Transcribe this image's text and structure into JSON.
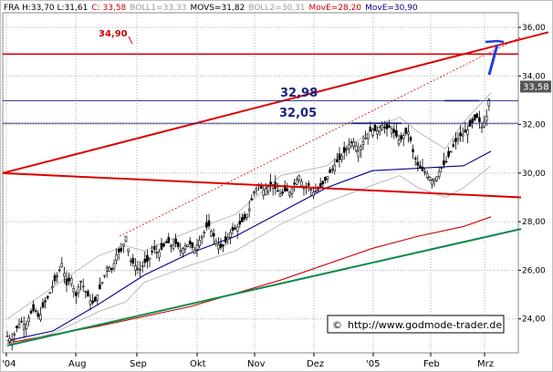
{
  "header": [
    {
      "text": "FRA H:33,70 L:31,61",
      "color": "#000000"
    },
    {
      "text": "C: 33,58",
      "color": "#cc0000"
    },
    {
      "text": "BOLL1=33,33",
      "color": "#999999"
    },
    {
      "text": "MOVS=31,82",
      "color": "#000000"
    },
    {
      "text": "BOLL2=30,31",
      "color": "#999999"
    },
    {
      "text": "MovE=28,20",
      "color": "#cc0000"
    },
    {
      "text": "MovE=30,90",
      "color": "#00008b"
    }
  ],
  "last_price_label": "33,58",
  "copyright": "http://www.godmode-trader.de",
  "copyright_symbol": "©",
  "annotations": {
    "top_red_level": "34,90",
    "resistance_1": "32,98",
    "resistance_2": "32,05"
  },
  "chart_data": {
    "type": "candlestick",
    "title": "",
    "xlabel": "",
    "ylabel": "",
    "ylim": [
      22.6,
      36.6
    ],
    "y_ticks": [
      "24,00",
      "26,00",
      "28,00",
      "30,00",
      "32,00",
      "34,00",
      "36,00"
    ],
    "x_ticks": [
      "'04",
      "Aug",
      "Sep",
      "Okt",
      "Nov",
      "Dez",
      "'05",
      "Feb",
      "Mrz"
    ],
    "grid": true,
    "price_series": {
      "name": "FRA",
      "points": [
        [
          0,
          23.3
        ],
        [
          5,
          23.1
        ],
        [
          10,
          23.6
        ],
        [
          15,
          23.9
        ],
        [
          20,
          23.7
        ],
        [
          25,
          24.2
        ],
        [
          30,
          24.4
        ],
        [
          35,
          24.0
        ],
        [
          40,
          24.6
        ],
        [
          45,
          24.9
        ],
        [
          50,
          25.4
        ],
        [
          55,
          25.8
        ],
        [
          60,
          26.3
        ],
        [
          65,
          25.4
        ],
        [
          70,
          25.7
        ],
        [
          75,
          24.9
        ],
        [
          80,
          25.6
        ],
        [
          85,
          25.2
        ],
        [
          90,
          24.8
        ],
        [
          95,
          24.6
        ],
        [
          100,
          25.1
        ],
        [
          105,
          25.6
        ],
        [
          110,
          26.2
        ],
        [
          115,
          26.0
        ],
        [
          120,
          26.7
        ],
        [
          125,
          26.8
        ],
        [
          130,
          27.4
        ],
        [
          135,
          26.4
        ],
        [
          140,
          26.2
        ],
        [
          145,
          26.0
        ],
        [
          150,
          26.3
        ],
        [
          155,
          26.4
        ],
        [
          160,
          26.9
        ],
        [
          165,
          26.7
        ],
        [
          170,
          26.9
        ],
        [
          175,
          27.2
        ],
        [
          180,
          27.0
        ],
        [
          185,
          27.1
        ],
        [
          190,
          26.8
        ],
        [
          195,
          27.0
        ],
        [
          200,
          27.1
        ],
        [
          205,
          26.8
        ],
        [
          210,
          27.2
        ],
        [
          215,
          27.5
        ],
        [
          220,
          27.9
        ],
        [
          225,
          27.5
        ],
        [
          230,
          27.1
        ],
        [
          235,
          26.9
        ],
        [
          240,
          27.2
        ],
        [
          245,
          27.6
        ],
        [
          250,
          27.7
        ],
        [
          255,
          27.9
        ],
        [
          260,
          28.1
        ],
        [
          265,
          28.5
        ],
        [
          270,
          29.2
        ],
        [
          275,
          29.5
        ],
        [
          280,
          29.3
        ],
        [
          285,
          29.4
        ],
        [
          290,
          29.6
        ],
        [
          295,
          29.3
        ],
        [
          300,
          29.1
        ],
        [
          305,
          29.3
        ],
        [
          310,
          29.2
        ],
        [
          315,
          29.6
        ],
        [
          320,
          29.9
        ],
        [
          325,
          29.4
        ],
        [
          330,
          29.5
        ],
        [
          335,
          29.2
        ],
        [
          340,
          29.3
        ],
        [
          345,
          29.5
        ],
        [
          350,
          29.8
        ],
        [
          355,
          30.1
        ],
        [
          360,
          30.4
        ],
        [
          365,
          30.6
        ],
        [
          370,
          30.9
        ],
        [
          375,
          31.2
        ],
        [
          380,
          31.3
        ],
        [
          385,
          30.9
        ],
        [
          390,
          31.3
        ],
        [
          395,
          31.6
        ],
        [
          400,
          31.8
        ],
        [
          405,
          31.7
        ],
        [
          410,
          32.0
        ],
        [
          415,
          31.8
        ],
        [
          420,
          31.9
        ],
        [
          425,
          31.6
        ],
        [
          430,
          31.3
        ],
        [
          435,
          31.6
        ],
        [
          440,
          31.7
        ],
        [
          445,
          30.8
        ],
        [
          450,
          30.3
        ],
        [
          455,
          30.1
        ],
        [
          460,
          30.0
        ],
        [
          465,
          29.7
        ],
        [
          470,
          29.8
        ],
        [
          475,
          30.2
        ],
        [
          480,
          30.4
        ],
        [
          485,
          30.8
        ],
        [
          490,
          31.2
        ],
        [
          495,
          31.5
        ],
        [
          500,
          31.6
        ],
        [
          505,
          31.8
        ],
        [
          510,
          32.1
        ],
        [
          515,
          32.3
        ],
        [
          520,
          31.9
        ],
        [
          525,
          32.3
        ],
        [
          530,
          33.58
        ]
      ]
    },
    "overlays": [
      {
        "name": "MovE=30,90",
        "color": "#00008b",
        "points": [
          [
            0,
            23.1
          ],
          [
            50,
            23.5
          ],
          [
            100,
            24.6
          ],
          [
            150,
            25.8
          ],
          [
            200,
            26.7
          ],
          [
            250,
            27.4
          ],
          [
            300,
            28.4
          ],
          [
            350,
            29.4
          ],
          [
            400,
            30.1
          ],
          [
            450,
            30.2
          ],
          [
            500,
            30.3
          ],
          [
            530,
            30.9
          ]
        ]
      },
      {
        "name": "MovE=28,20",
        "color": "#cc0000",
        "points": [
          [
            0,
            23.0
          ],
          [
            100,
            23.7
          ],
          [
            200,
            24.5
          ],
          [
            300,
            25.6
          ],
          [
            400,
            26.9
          ],
          [
            450,
            27.4
          ],
          [
            500,
            27.8
          ],
          [
            530,
            28.2
          ]
        ]
      },
      {
        "name": "BOLL1=33,33",
        "color": "#aaaaaa",
        "points": [
          [
            0,
            24.0
          ],
          [
            50,
            25.3
          ],
          [
            100,
            26.6
          ],
          [
            130,
            27.0
          ],
          [
            150,
            26.8
          ],
          [
            200,
            27.6
          ],
          [
            250,
            28.3
          ],
          [
            300,
            29.9
          ],
          [
            350,
            30.3
          ],
          [
            400,
            31.8
          ],
          [
            430,
            32.3
          ],
          [
            450,
            31.7
          ],
          [
            480,
            31.0
          ],
          [
            500,
            32.1
          ],
          [
            530,
            33.3
          ]
        ]
      },
      {
        "name": "BOLL2=30,31",
        "color": "#aaaaaa",
        "points": [
          [
            0,
            22.9
          ],
          [
            50,
            23.4
          ],
          [
            100,
            24.3
          ],
          [
            130,
            24.7
          ],
          [
            150,
            25.5
          ],
          [
            200,
            26.2
          ],
          [
            250,
            26.8
          ],
          [
            300,
            27.9
          ],
          [
            350,
            28.8
          ],
          [
            400,
            29.5
          ],
          [
            430,
            29.9
          ],
          [
            450,
            29.4
          ],
          [
            480,
            29.0
          ],
          [
            500,
            29.4
          ],
          [
            530,
            30.3
          ]
        ]
      }
    ],
    "trend_lines": [
      {
        "name": "upper-red-channel",
        "color": "#dd0000",
        "p1": [
          0,
          30.0
        ],
        "p2": [
          598,
          35.8
        ]
      },
      {
        "name": "red-support-break",
        "color": "#dd0000",
        "p1": [
          0,
          30.0
        ],
        "p2": [
          568,
          29.0
        ]
      },
      {
        "name": "red-dotted",
        "color": "#dd0000",
        "dashed": true,
        "p1": [
          128,
          27.4
        ],
        "p2": [
          568,
          35.6
        ]
      },
      {
        "name": "green-long-support",
        "color": "#0a8a4a",
        "p1": [
          5,
          22.9
        ],
        "p2": [
          568,
          27.7
        ]
      }
    ],
    "horizontal_levels": [
      {
        "name": "34,90",
        "value": 34.9,
        "color": "#dd0000"
      },
      {
        "name": "32,98",
        "value": 32.98,
        "color": "#1a237e"
      },
      {
        "name": "32,05",
        "value": 32.05,
        "color": "#1a237e"
      }
    ]
  }
}
